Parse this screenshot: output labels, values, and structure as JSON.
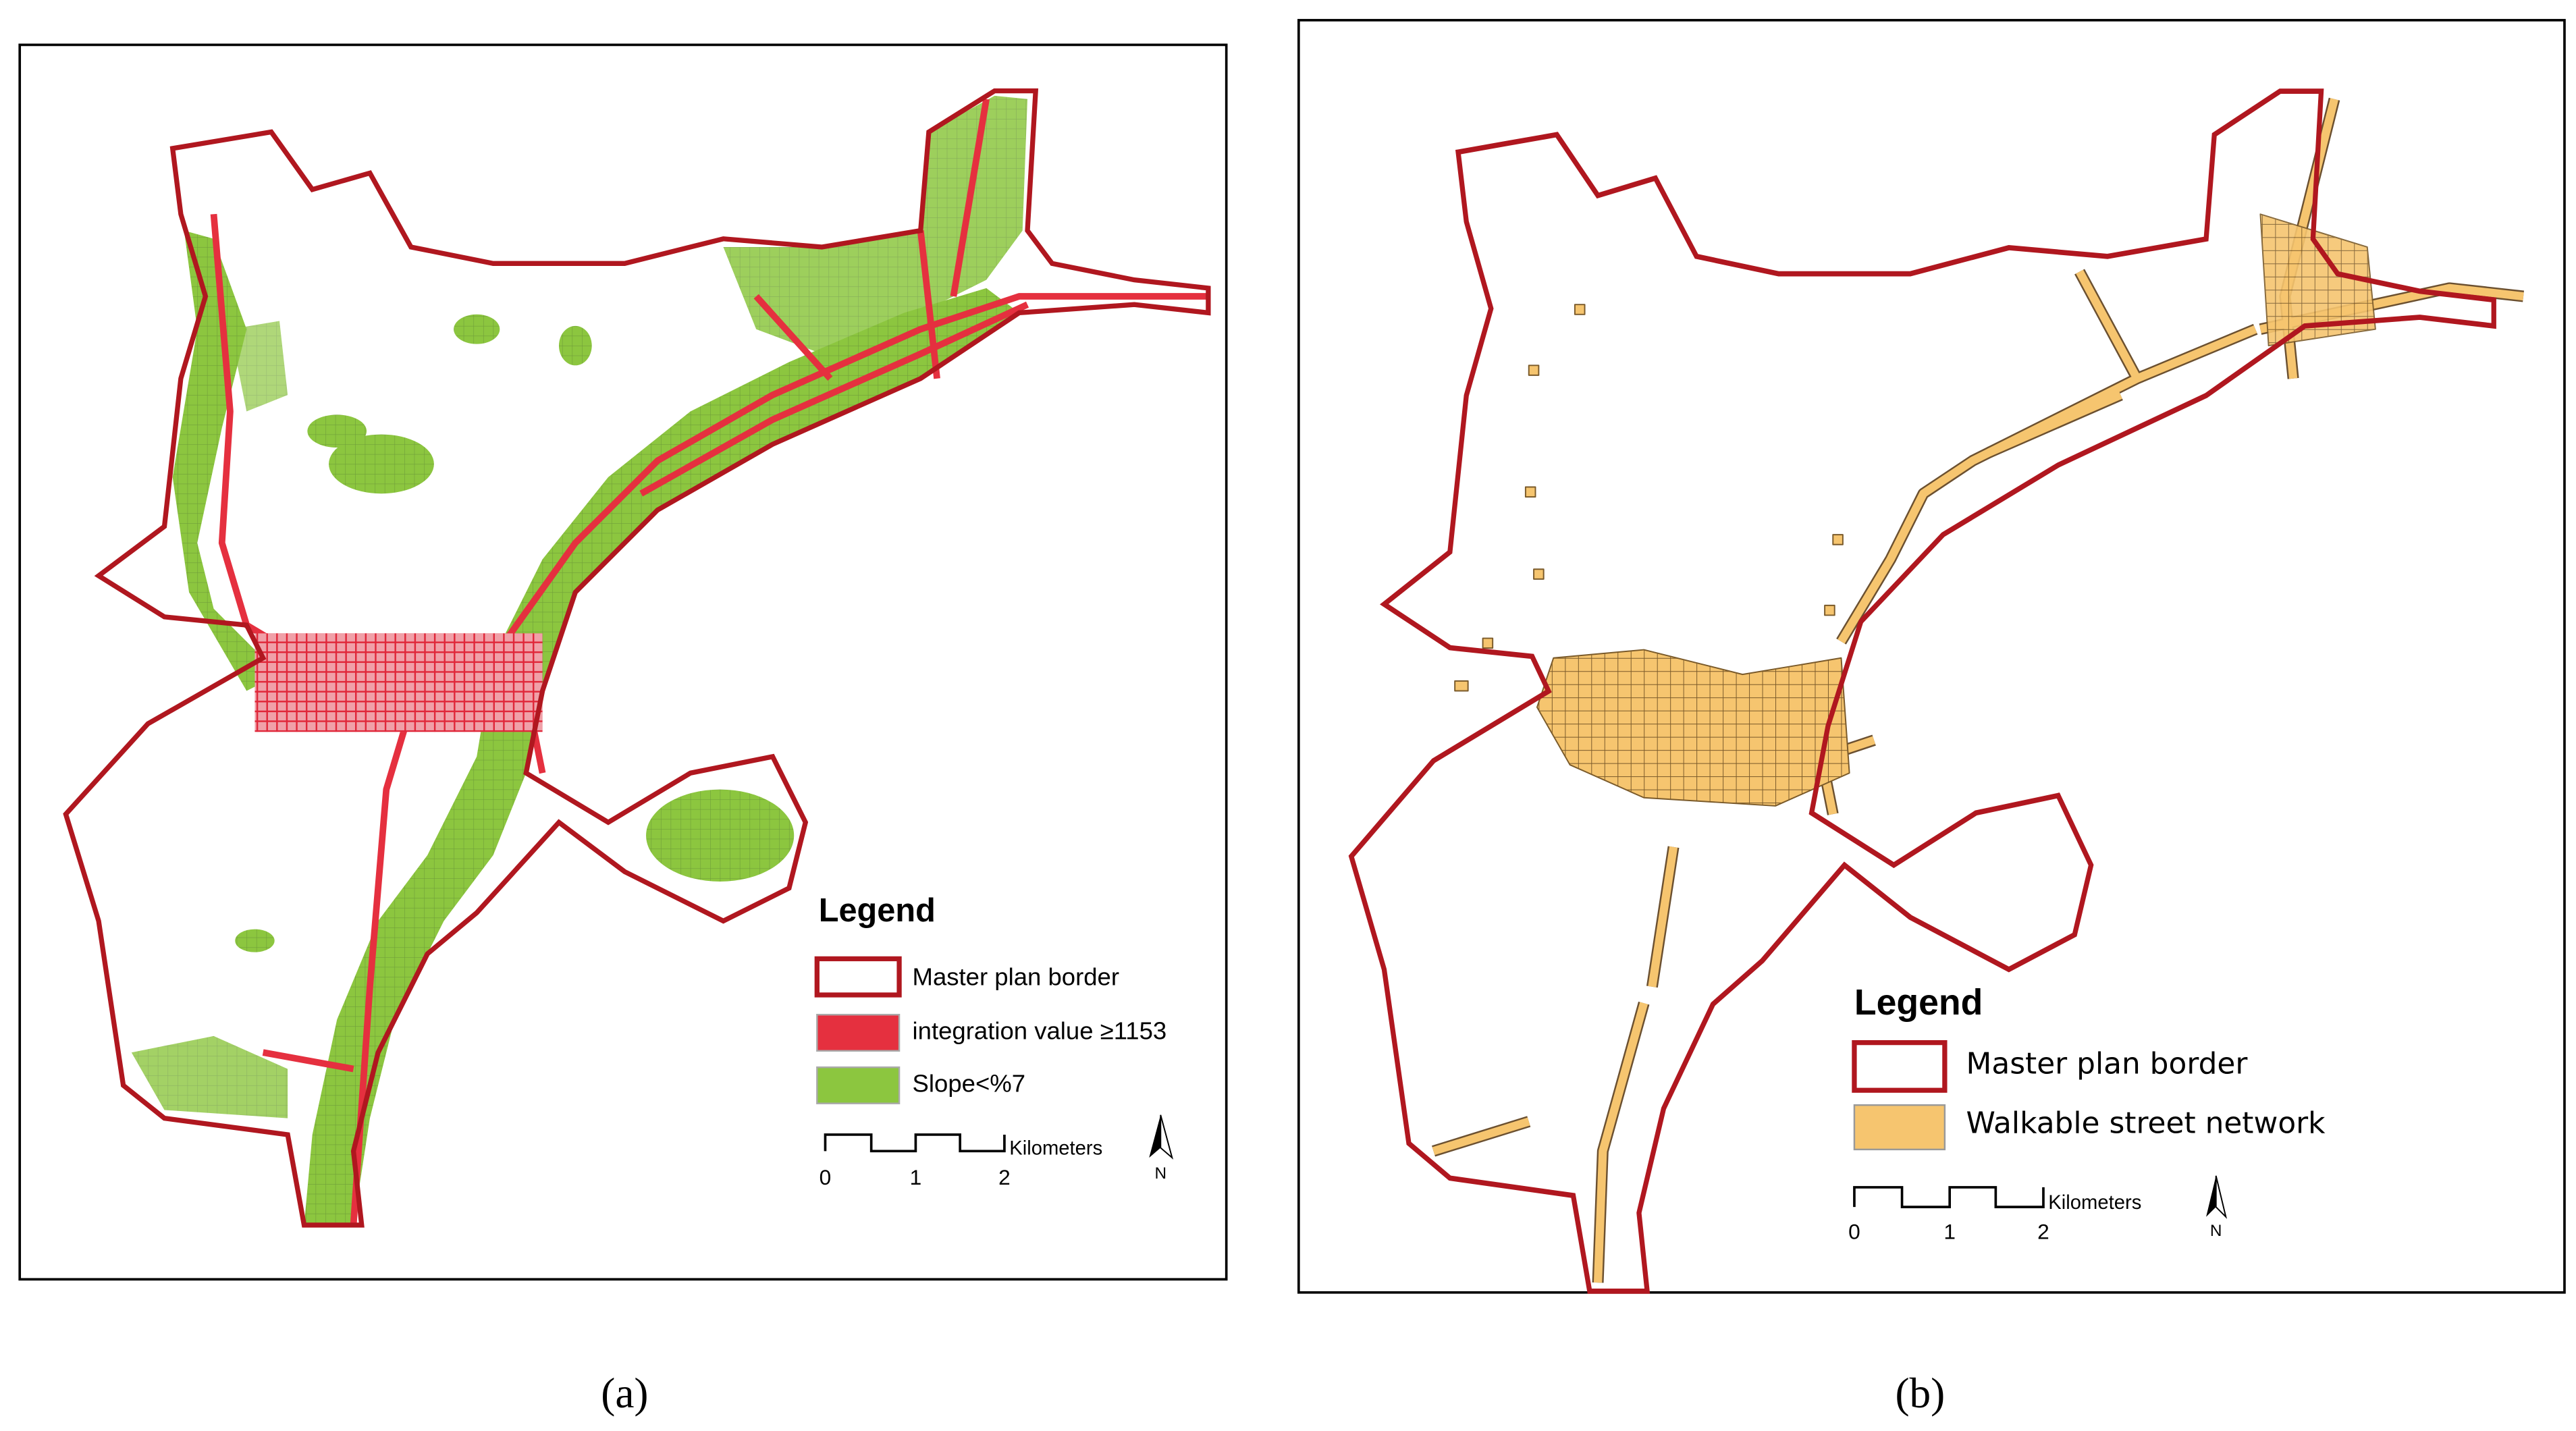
{
  "panels": [
    {
      "caption": "(a)",
      "legend": {
        "title": "Legend",
        "items": [
          "Master plan border",
          "integration value ≥1153",
          "Slope<%7"
        ]
      },
      "scale_bar": {
        "unit": "Kilometers",
        "labels": [
          "0",
          "1",
          "2"
        ]
      },
      "north_arrow": "N"
    },
    {
      "caption": "(b)",
      "legend": {
        "title": "Legend",
        "items": [
          "Master plan border",
          "Walkable street network"
        ]
      },
      "scale_bar": {
        "unit": "Kilometers",
        "labels": [
          "0",
          "1",
          "2"
        ]
      },
      "north_arrow": "N"
    }
  ]
}
